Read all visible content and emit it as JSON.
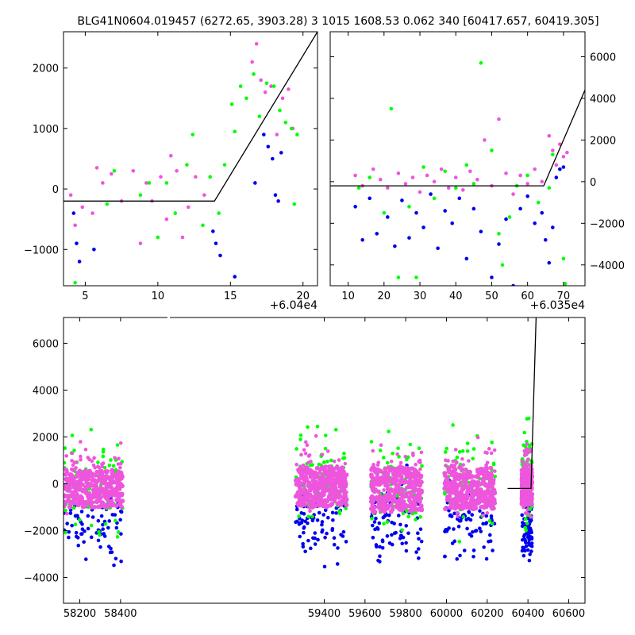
{
  "title": "BLG41N0604.019457 (6272.65, 3903.28)   3 1015 1608.53 0.062 340 [60417.657, 60419.305]",
  "colors": {
    "green": "#00ff00",
    "blue": "#0000ee",
    "pink": "#ee55dd",
    "line": "#000000"
  },
  "chart_data": [
    {
      "id": "top-left",
      "type": "scatter",
      "x_offset_label": "+6.04e4",
      "x_offset": 60400,
      "xlim": [
        3.5,
        21
      ],
      "ylim": [
        -1600,
        2600
      ],
      "xticks": [
        5,
        10,
        15,
        20
      ],
      "yticks": [
        -1000,
        0,
        1000,
        2000
      ],
      "model_line": {
        "x": [
          3.5,
          13.9,
          21
        ],
        "y": [
          -200,
          -200,
          2600
        ]
      },
      "series": [
        {
          "color": "pink",
          "points": [
            [
              4,
              -100
            ],
            [
              4.3,
              -600
            ],
            [
              4.8,
              -300
            ],
            [
              5.5,
              -400
            ],
            [
              5.8,
              350
            ],
            [
              6.2,
              100
            ],
            [
              6.8,
              250
            ],
            [
              7.5,
              -200
            ],
            [
              8.3,
              300
            ],
            [
              8.8,
              -900
            ],
            [
              9.2,
              100
            ],
            [
              9.6,
              -200
            ],
            [
              10.2,
              200
            ],
            [
              10.6,
              -500
            ],
            [
              10.9,
              550
            ],
            [
              11.3,
              300
            ],
            [
              11.7,
              -800
            ],
            [
              12.1,
              -300
            ],
            [
              12.6,
              200
            ],
            [
              13.2,
              -100
            ],
            [
              16.5,
              2100
            ],
            [
              16.8,
              2400
            ],
            [
              17.1,
              1800
            ],
            [
              17.4,
              1600
            ],
            [
              17.8,
              1700
            ],
            [
              18.2,
              900
            ],
            [
              18.6,
              1500
            ],
            [
              19.0,
              1650
            ],
            [
              19.3,
              1000
            ]
          ]
        },
        {
          "color": "green",
          "points": [
            [
              4.3,
              -1550
            ],
            [
              6.5,
              -250
            ],
            [
              7.0,
              300
            ],
            [
              8.8,
              -100
            ],
            [
              9.4,
              100
            ],
            [
              10.0,
              -800
            ],
            [
              10.6,
              100
            ],
            [
              11.2,
              -400
            ],
            [
              12.0,
              400
            ],
            [
              12.4,
              900
            ],
            [
              13.1,
              -600
            ],
            [
              13.6,
              200
            ],
            [
              14.2,
              -400
            ],
            [
              14.6,
              400
            ],
            [
              15.1,
              1400
            ],
            [
              15.3,
              950
            ],
            [
              15.7,
              1700
            ],
            [
              16.1,
              1500
            ],
            [
              16.6,
              1900
            ],
            [
              17.0,
              1200
            ],
            [
              17.5,
              1750
            ],
            [
              18.0,
              1700
            ],
            [
              18.4,
              1300
            ],
            [
              18.8,
              1100
            ],
            [
              19.2,
              1000
            ],
            [
              19.6,
              900
            ],
            [
              19.4,
              -250
            ]
          ]
        },
        {
          "color": "blue",
          "points": [
            [
              4.2,
              -400
            ],
            [
              4.4,
              -900
            ],
            [
              4.6,
              -1200
            ],
            [
              5.6,
              -1000
            ],
            [
              13.8,
              -700
            ],
            [
              14.0,
              -900
            ],
            [
              14.3,
              -1100
            ],
            [
              15.3,
              -1450
            ],
            [
              16.7,
              100
            ],
            [
              17.3,
              900
            ],
            [
              17.6,
              700
            ],
            [
              17.9,
              500
            ],
            [
              18.1,
              -100
            ],
            [
              18.3,
              -200
            ],
            [
              18.5,
              600
            ]
          ]
        }
      ]
    },
    {
      "id": "top-right",
      "type": "scatter",
      "x_offset_label": "+6.035e4",
      "x_offset": 60350,
      "xlim": [
        5,
        76
      ],
      "ylim": [
        -5000,
        7200
      ],
      "xticks": [
        10,
        20,
        30,
        40,
        50,
        60,
        70
      ],
      "yticks": [
        -4000,
        -2000,
        0,
        2000,
        4000,
        6000
      ],
      "model_line": {
        "x": [
          5,
          64.5,
          76
        ],
        "y": [
          -200,
          -200,
          4400
        ]
      },
      "series": [
        {
          "color": "pink",
          "points": [
            [
              12,
              300
            ],
            [
              14,
              -200
            ],
            [
              17,
              600
            ],
            [
              19,
              100
            ],
            [
              21,
              -300
            ],
            [
              24,
              400
            ],
            [
              26,
              -100
            ],
            [
              28,
              200
            ],
            [
              30,
              -500
            ],
            [
              32,
              300
            ],
            [
              34,
              0
            ],
            [
              36,
              600
            ],
            [
              38,
              -300
            ],
            [
              40,
              200
            ],
            [
              42,
              -400
            ],
            [
              44,
              500
            ],
            [
              46,
              100
            ],
            [
              48,
              2000
            ],
            [
              50,
              -200
            ],
            [
              52,
              3000
            ],
            [
              54,
              400
            ],
            [
              56,
              -600
            ],
            [
              58,
              300
            ],
            [
              60,
              -100
            ],
            [
              62,
              600
            ],
            [
              64,
              0
            ],
            [
              66,
              2200
            ],
            [
              67,
              1500
            ],
            [
              68,
              800
            ],
            [
              69,
              1800
            ],
            [
              70,
              1200
            ],
            [
              71,
              1400
            ]
          ]
        },
        {
          "color": "green",
          "points": [
            [
              13,
              -300
            ],
            [
              16,
              200
            ],
            [
              20,
              -1500
            ],
            [
              22,
              3500
            ],
            [
              24,
              -4600
            ],
            [
              27,
              -1200
            ],
            [
              29,
              -4600
            ],
            [
              31,
              700
            ],
            [
              34,
              -800
            ],
            [
              37,
              500
            ],
            [
              40,
              -300
            ],
            [
              43,
              800
            ],
            [
              45,
              -100
            ],
            [
              47,
              5700
            ],
            [
              50,
              1500
            ],
            [
              52,
              -2500
            ],
            [
              53,
              -4000
            ],
            [
              55,
              -1700
            ],
            [
              57,
              -200
            ],
            [
              60,
              300
            ],
            [
              63,
              -1000
            ],
            [
              66,
              -300
            ],
            [
              67,
              1300
            ],
            [
              69,
              600
            ],
            [
              70,
              -3700
            ],
            [
              70.5,
              -4900
            ]
          ]
        },
        {
          "color": "blue",
          "points": [
            [
              12,
              -1200
            ],
            [
              14,
              -2800
            ],
            [
              16,
              -800
            ],
            [
              18,
              -2500
            ],
            [
              21,
              -1700
            ],
            [
              23,
              -3100
            ],
            [
              25,
              -900
            ],
            [
              27,
              -2700
            ],
            [
              29,
              -1500
            ],
            [
              31,
              -2200
            ],
            [
              33,
              -600
            ],
            [
              35,
              -3200
            ],
            [
              37,
              -1400
            ],
            [
              39,
              -2000
            ],
            [
              41,
              -800
            ],
            [
              43,
              -3700
            ],
            [
              45,
              -1300
            ],
            [
              47,
              -2400
            ],
            [
              50,
              -4600
            ],
            [
              52,
              -3000
            ],
            [
              54,
              -1800
            ],
            [
              56,
              -5000
            ],
            [
              58,
              -1300
            ],
            [
              60,
              -700
            ],
            [
              62,
              -2000
            ],
            [
              64,
              -1500
            ],
            [
              65,
              -2800
            ],
            [
              66,
              -3900
            ],
            [
              67,
              -2200
            ],
            [
              68,
              200
            ],
            [
              69,
              600
            ],
            [
              70,
              700
            ]
          ]
        }
      ]
    },
    {
      "id": "bottom",
      "type": "scatter",
      "x_offset_label": "",
      "x_offset": 0,
      "xlim": [
        58120,
        60680
      ],
      "ylim": [
        -5100,
        7100
      ],
      "xticks": [
        58200,
        58400,
        59400,
        59600,
        59800,
        60000,
        60200,
        60400,
        60600
      ],
      "yticks": [
        -4000,
        -2000,
        0,
        2000,
        4000,
        6000
      ],
      "model_line": {
        "x": [
          60300,
          60415,
          60419,
          60440
        ],
        "y": [
          -200,
          -200,
          1000,
          7100
        ]
      },
      "seasons": [
        {
          "x": [
            58120,
            58410
          ],
          "core_y": [
            -1000,
            600
          ],
          "outer_y": [
            -4800,
            7000
          ]
        },
        {
          "x": [
            59260,
            59510
          ],
          "core_y": [
            -1000,
            700
          ],
          "outer_y": [
            -5000,
            6500
          ]
        },
        {
          "x": [
            59630,
            59880
          ],
          "core_y": [
            -1200,
            700
          ],
          "outer_y": [
            -5000,
            6900
          ]
        },
        {
          "x": [
            59990,
            60240
          ],
          "core_y": [
            -1100,
            700
          ],
          "outer_y": [
            -5000,
            6800
          ]
        },
        {
          "x": [
            60370,
            60420
          ],
          "core_y": [
            -900,
            600
          ],
          "outer_y": [
            -4800,
            5700
          ]
        }
      ]
    }
  ]
}
